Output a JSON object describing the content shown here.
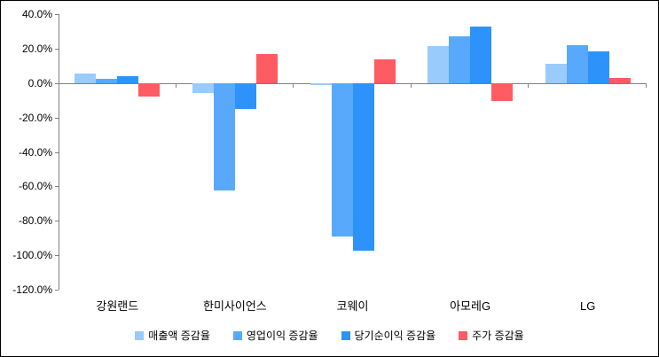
{
  "chart_data": {
    "type": "bar",
    "title": "",
    "xlabel": "",
    "ylabel": "",
    "categories": [
      "강원랜드",
      "한미사이언스",
      "코웨이",
      "아모레G",
      "LG"
    ],
    "series": [
      {
        "name": "매출액 증감율",
        "color": "#99CBFC",
        "values": [
          5.7,
          -5.5,
          -1.0,
          21.5,
          11.0
        ]
      },
      {
        "name": "영업이익 증감율",
        "color": "#58A9FB",
        "values": [
          2.2,
          -62.3,
          -89.0,
          26.9,
          22.2
        ]
      },
      {
        "name": "당기순이익 증감율",
        "color": "#2D93FB",
        "values": [
          4.2,
          -15.0,
          -97.2,
          33.0,
          18.5
        ]
      },
      {
        "name": "주가 증감율",
        "color": "#FF5B62",
        "values": [
          -7.7,
          17.0,
          14.0,
          -10.4,
          3.0
        ]
      }
    ],
    "ylim": [
      -120,
      40
    ],
    "ytick_step": 20,
    "ytick_labels": [
      "40.0%",
      "20.0%",
      "0.0%",
      "-20.0%",
      "-40.0%",
      "-60.0%",
      "-80.0%",
      "-100.0%",
      "-120.0%"
    ],
    "grid": false,
    "legend_position": "bottom",
    "axis_color": "#808080",
    "background": "#FFFFFF"
  }
}
